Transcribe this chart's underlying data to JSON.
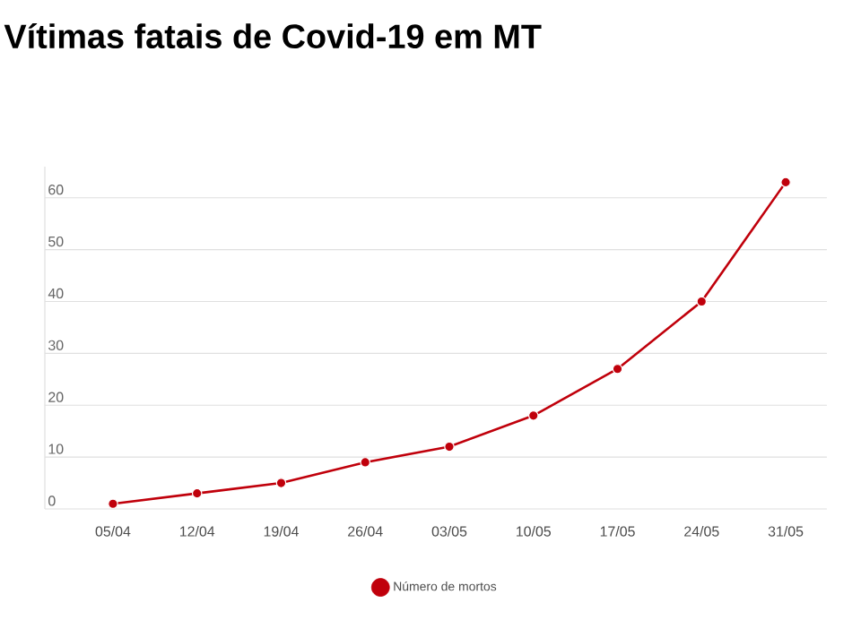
{
  "chart_data": {
    "type": "line",
    "title": "Vítimas fatais de Covid-19 em MT",
    "categories": [
      "05/04",
      "12/04",
      "19/04",
      "26/04",
      "03/05",
      "10/05",
      "17/05",
      "24/05",
      "31/05"
    ],
    "series": [
      {
        "name": "Número de mortos",
        "color": "#c0000b",
        "values": [
          1,
          3,
          5,
          9,
          12,
          18,
          27,
          40,
          63
        ]
      }
    ],
    "ylim": [
      0,
      66
    ],
    "yticks": [
      0,
      10,
      20,
      30,
      40,
      50,
      60
    ],
    "grid": "y",
    "legend": "bottom",
    "marker": "circle",
    "line_style": "solid"
  }
}
